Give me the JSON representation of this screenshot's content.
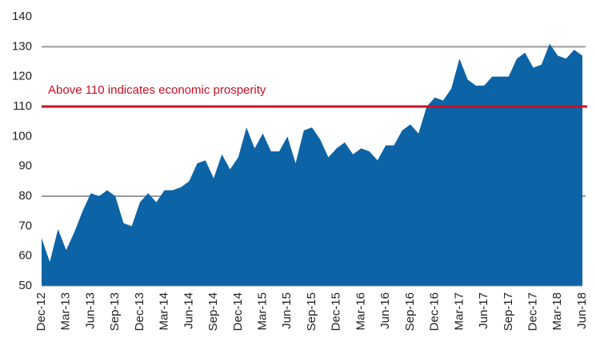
{
  "chart_data": {
    "type": "area",
    "categories": [
      "Dec-12",
      null,
      null,
      "Mar-13",
      null,
      null,
      "Jun-13",
      null,
      null,
      "Sep-13",
      null,
      null,
      "Dec-13",
      null,
      null,
      "Mar-14",
      null,
      null,
      "Jun-14",
      null,
      null,
      "Sep-14",
      null,
      null,
      "Dec-14",
      null,
      null,
      "Mar-15",
      null,
      null,
      "Jun-15",
      null,
      null,
      "Sep-15",
      null,
      null,
      "Dec-15",
      null,
      null,
      "Mar-16",
      null,
      null,
      "Jun-16",
      null,
      null,
      "Sep-16",
      null,
      null,
      "Dec-16",
      null,
      null,
      "Mar-17",
      null,
      null,
      "Jun-17",
      null,
      null,
      "Sep-17",
      null,
      null,
      "Dec-17",
      null,
      null,
      "Mar-18",
      null,
      null,
      "Jun-18"
    ],
    "values": [
      66,
      58,
      69,
      62,
      68,
      75,
      81,
      80,
      82,
      80,
      71,
      70,
      78,
      81,
      78,
      82,
      82,
      83,
      85,
      91,
      92,
      86,
      94,
      89,
      93,
      103,
      96,
      101,
      95,
      95,
      100,
      91,
      102,
      103,
      99,
      93,
      96,
      98,
      94,
      96,
      95,
      92,
      97,
      97,
      102,
      104,
      101,
      110,
      113,
      112,
      116,
      126,
      119,
      117,
      117,
      120,
      120,
      120,
      126,
      128,
      123,
      124,
      131,
      127,
      126,
      129,
      127
    ],
    "color": "#0c64a6",
    "ylim": [
      50,
      140
    ],
    "yticks": [
      50,
      60,
      70,
      80,
      90,
      100,
      110,
      120,
      130,
      140
    ],
    "grid_lines": [
      80,
      130
    ],
    "reference_line": {
      "value": 110,
      "color": "#cc0e23",
      "label": "Above 110 indicates economic prosperity"
    }
  }
}
